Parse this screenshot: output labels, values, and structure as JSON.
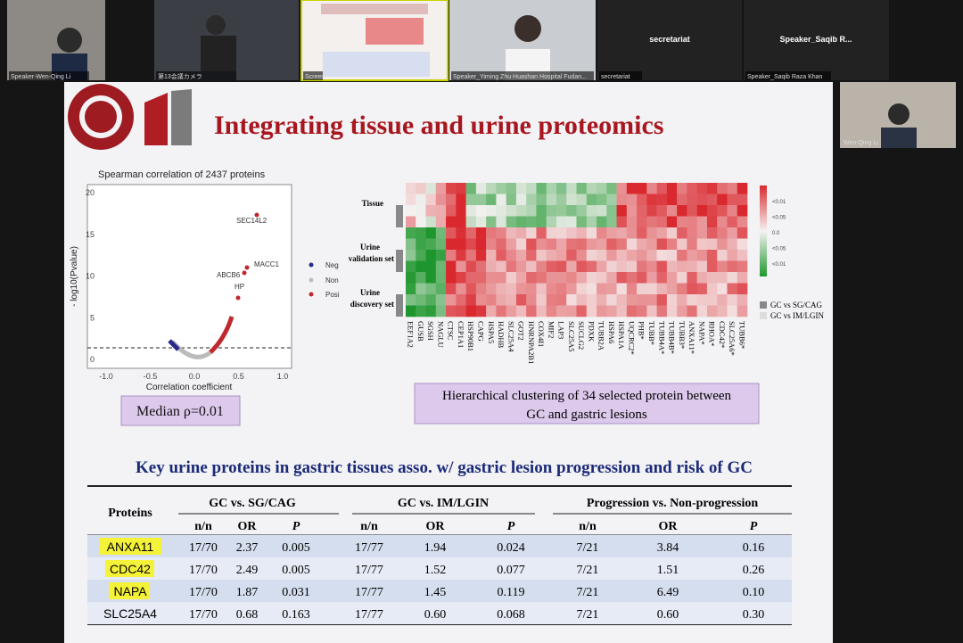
{
  "participants": [
    {
      "label": "Speaker-Wen-Qing Li"
    },
    {
      "label": "第13会議カメラ"
    },
    {
      "label": "Screen"
    },
    {
      "label": "Speaker_Yiming Zhu Huashan Hospital Fudan..."
    },
    {
      "label": "secretariat",
      "name": "secretariat"
    },
    {
      "label": "Speaker_Saqib Raza Khan",
      "name": "Speaker_Saqib R..."
    }
  ],
  "side_tile": {
    "label": "Wen-Qing Li"
  },
  "slide": {
    "title": "Integrating tissue and urine proteomics",
    "volcano": {
      "title": "Spearman correlation of 2437 proteins",
      "x_label": "Correlation coefficient",
      "y_label": "- log10(Pvalue)",
      "xticks": [
        "-1.0",
        "-0.5",
        "0.0",
        "0.5",
        "1.0"
      ],
      "yticks": [
        "0",
        "5",
        "10",
        "15",
        "20"
      ],
      "point_labels": [
        "SEC14L2",
        "MACC1",
        "ABCB6",
        "HP"
      ],
      "legend": [
        "Neg",
        "Non",
        "Posi"
      ]
    },
    "median": "Median ρ=0.01",
    "heatmap": {
      "row_labels": [
        "Tissue",
        "Urine validation set",
        "Urine discovery set"
      ],
      "columns": [
        "EEF1A2",
        "GUSB",
        "SGSH",
        "NAGLU",
        "CTSC",
        "CEP1A1",
        "HSP90B1",
        "CAPG",
        "HSPA5",
        "HADHB",
        "SLC25A4",
        "GOT2",
        "HNRNPA2B1",
        "COX4I1",
        "MIF2",
        "LAP3",
        "SLC25A5",
        "SUCLG2",
        "PDXK",
        "TUBB2A",
        "HSPA6",
        "HSPA1A",
        "UQCRC2*",
        "PHB*",
        "TUBB*",
        "TUBB4A*",
        "TUBB4B*",
        "TUBB3*",
        "ANXA11*",
        "NAPA*",
        "RHOA*",
        "CDC42*",
        "SLC25A6*",
        "TUBB6*"
      ],
      "scale": [
        "<0.01",
        "<0.05",
        "0.0",
        "<0.05",
        "<0.01"
      ],
      "legend": [
        "GC vs SG/CAG",
        "GC vs IM/LGIN"
      ]
    },
    "caption": "Hierarchical clustering of 34 selected protein between GC and gastric lesions",
    "table_title": "Key urine proteins in gastric tissues asso. w/ gastric lesion progression and risk of GC",
    "table": {
      "corner": "Proteins",
      "groups": [
        "GC vs. SG/CAG",
        "GC vs. IM/LGIN",
        "Progression vs. Non-progression"
      ],
      "subheaders": [
        "n/n",
        "OR",
        "P",
        "n/n",
        "OR",
        "P",
        "n/n",
        "OR",
        "P"
      ],
      "rows": [
        [
          "ANXA11",
          "17/70",
          "2.37",
          "0.005",
          "17/77",
          "1.94",
          "0.024",
          "7/21",
          "3.84",
          "0.16"
        ],
        [
          "CDC42",
          "17/70",
          "2.49",
          "0.005",
          "17/77",
          "1.52",
          "0.077",
          "7/21",
          "1.51",
          "0.26"
        ],
        [
          "NAPA",
          "17/70",
          "1.87",
          "0.031",
          "17/77",
          "1.45",
          "0.119",
          "7/21",
          "6.49",
          "0.10"
        ],
        [
          "SLC25A4",
          "17/70",
          "0.68",
          "0.163",
          "17/77",
          "0.60",
          "0.068",
          "7/21",
          "0.60",
          "0.30"
        ]
      ]
    }
  }
}
